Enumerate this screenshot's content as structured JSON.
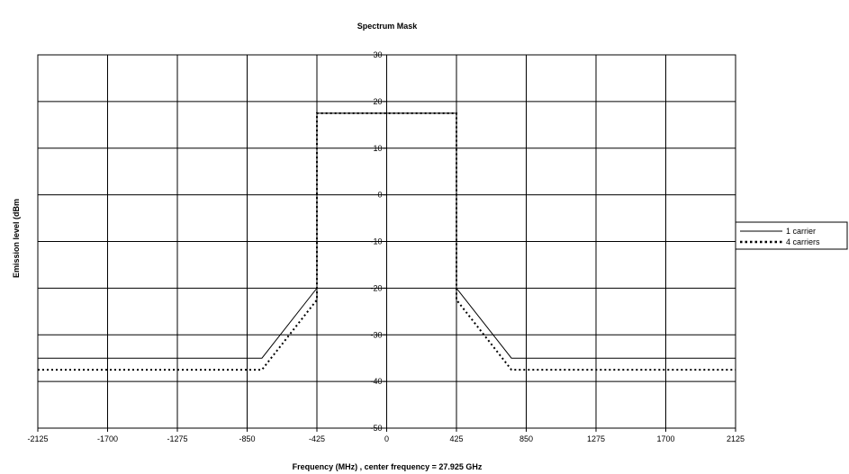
{
  "chart_data": {
    "type": "line",
    "title": "Spectrum Mask",
    "xlabel": "Frequency (MHz) , center frequency = 27.925 GHz",
    "ylabel": "Emission level (dBm",
    "xlim": [
      -2125,
      2125
    ],
    "ylim": [
      -50,
      30
    ],
    "x_ticks": [
      -2125,
      -1700,
      -1275,
      -850,
      -425,
      0,
      425,
      850,
      1275,
      1700,
      2125
    ],
    "x_tick_labels": [
      "-2125",
      "-1700",
      "-1275",
      "-850",
      "-425",
      "0",
      "425",
      "850",
      "1275",
      "1700",
      "2125"
    ],
    "y_ticks": [
      30,
      20,
      10,
      0,
      -10,
      -20,
      -30,
      -40,
      -50
    ],
    "y_tick_labels": [
      "30",
      "20",
      "10",
      "0",
      "-10",
      "-20",
      "-30",
      "-40",
      "-50"
    ],
    "grid": true,
    "legend_position": "right",
    "series": [
      {
        "name": "1 carrier",
        "style": "solid",
        "color": "#000000",
        "x": [
          -2125,
          -760,
          -425,
          -425,
          425,
          425,
          760,
          2125
        ],
        "y": [
          -35,
          -35,
          -20,
          17.5,
          17.5,
          -20,
          -35,
          -35
        ]
      },
      {
        "name": "4 carriers",
        "style": "dotted",
        "color": "#000000",
        "x": [
          -2125,
          -760,
          -425,
          -425,
          425,
          425,
          760,
          2125
        ],
        "y": [
          -37.5,
          -37.5,
          -22.5,
          17.5,
          17.5,
          -22.5,
          -37.5,
          -37.5
        ]
      }
    ]
  }
}
